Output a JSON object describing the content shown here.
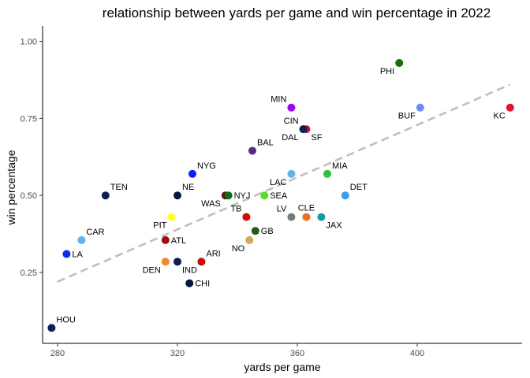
{
  "chart_data": {
    "type": "scatter",
    "title": "relationship between yards per game and win percentage in 2022",
    "xlabel": "yards per game",
    "ylabel": "win percentage",
    "xlim": [
      275,
      435
    ],
    "ylim": [
      0.02,
      1.05
    ],
    "xticks": [
      280,
      320,
      360,
      400
    ],
    "yticks": [
      0.25,
      0.5,
      0.75,
      1.0
    ],
    "xtick_labels": [
      "280",
      "320",
      "360",
      "400"
    ],
    "ytick_labels": [
      "0.25",
      "0.50",
      "0.75",
      "1.00"
    ],
    "grid": false,
    "trend_line": {
      "x": [
        280,
        431
      ],
      "y": [
        0.22,
        0.86
      ],
      "color": "#bfbfbf",
      "style": "dashed"
    },
    "points": [
      {
        "team": "PHI",
        "x": 394,
        "y": 0.93,
        "color": "#1a6e0e",
        "label_pos": "bl"
      },
      {
        "team": "KC",
        "x": 431,
        "y": 0.785,
        "color": "#e8112d",
        "label_pos": "bl"
      },
      {
        "team": "BUF",
        "x": 401,
        "y": 0.785,
        "color": "#6b8ef5",
        "label_pos": "bl"
      },
      {
        "team": "MIN",
        "x": 358,
        "y": 0.785,
        "color": "#a100ff",
        "label_pos": "tl"
      },
      {
        "team": "CIN",
        "x": 362,
        "y": 0.715,
        "color": "#0b1e5b",
        "label_pos": "tl"
      },
      {
        "team": "SF",
        "x": 363,
        "y": 0.715,
        "color": "#c8102e",
        "label_pos": "br"
      },
      {
        "team": "DAL",
        "x": 362,
        "y": 0.715,
        "color": "#0b1e5b",
        "label_pos": "bl"
      },
      {
        "team": "BAL",
        "x": 345,
        "y": 0.645,
        "color": "#5b2a86",
        "label_pos": "tr"
      },
      {
        "team": "NYG",
        "x": 325,
        "y": 0.57,
        "color": "#0a1eff",
        "label_pos": "tr"
      },
      {
        "team": "LAC",
        "x": 358,
        "y": 0.57,
        "color": "#5eb4f0",
        "label_pos": "bl"
      },
      {
        "team": "MIA",
        "x": 370,
        "y": 0.57,
        "color": "#2bc23a",
        "label_pos": "tr"
      },
      {
        "team": "TEN",
        "x": 296,
        "y": 0.5,
        "color": "#0b1e5b",
        "label_pos": "tr"
      },
      {
        "team": "NE",
        "x": 320,
        "y": 0.5,
        "color": "#0b1640",
        "label_pos": "tr"
      },
      {
        "team": "WAS",
        "x": 336,
        "y": 0.5,
        "color": "#6b1010",
        "label_pos": "bl"
      },
      {
        "team": "NYJ",
        "x": 337,
        "y": 0.5,
        "color": "#0a6e1a",
        "label_pos": "r"
      },
      {
        "team": "SEA",
        "x": 349,
        "y": 0.5,
        "color": "#55dd22",
        "label_pos": "r"
      },
      {
        "team": "DET",
        "x": 376,
        "y": 0.5,
        "color": "#3b9cf5",
        "label_pos": "tr"
      },
      {
        "team": "PIT",
        "x": 318,
        "y": 0.43,
        "color": "#ffff1a",
        "label_pos": "bl"
      },
      {
        "team": "TB",
        "x": 343,
        "y": 0.43,
        "color": "#d40a0a",
        "label_pos": "tl"
      },
      {
        "team": "LV",
        "x": 358,
        "y": 0.43,
        "color": "#7a7a7a",
        "label_pos": "tl"
      },
      {
        "team": "CLE",
        "x": 363,
        "y": 0.43,
        "color": "#f26b1d",
        "label_pos": "t"
      },
      {
        "team": "JAX",
        "x": 368,
        "y": 0.43,
        "color": "#179aa3",
        "label_pos": "br"
      },
      {
        "team": "GB",
        "x": 346,
        "y": 0.385,
        "color": "#1d5e12",
        "label_pos": "r"
      },
      {
        "team": "CAR",
        "x": 288,
        "y": 0.355,
        "color": "#5eb4f0",
        "label_pos": "tr"
      },
      {
        "team": "ATL",
        "x": 316,
        "y": 0.355,
        "color": "#a50b0b",
        "label_pos": "r"
      },
      {
        "team": "NO",
        "x": 344,
        "y": 0.355,
        "color": "#d3aa55",
        "label_pos": "bl"
      },
      {
        "team": "LA",
        "x": 283,
        "y": 0.31,
        "color": "#0a2bff",
        "label_pos": "r"
      },
      {
        "team": "DEN",
        "x": 316,
        "y": 0.285,
        "color": "#f58a1f",
        "label_pos": "bl"
      },
      {
        "team": "IND",
        "x": 320,
        "y": 0.285,
        "color": "#0b1e5b",
        "label_pos": "br"
      },
      {
        "team": "ARI",
        "x": 328,
        "y": 0.285,
        "color": "#d40a0a",
        "label_pos": "tr"
      },
      {
        "team": "CHI",
        "x": 324,
        "y": 0.215,
        "color": "#0b1640",
        "label_pos": "r"
      },
      {
        "team": "HOU",
        "x": 278,
        "y": 0.07,
        "color": "#0b1e5b",
        "label_pos": "tr"
      }
    ]
  }
}
